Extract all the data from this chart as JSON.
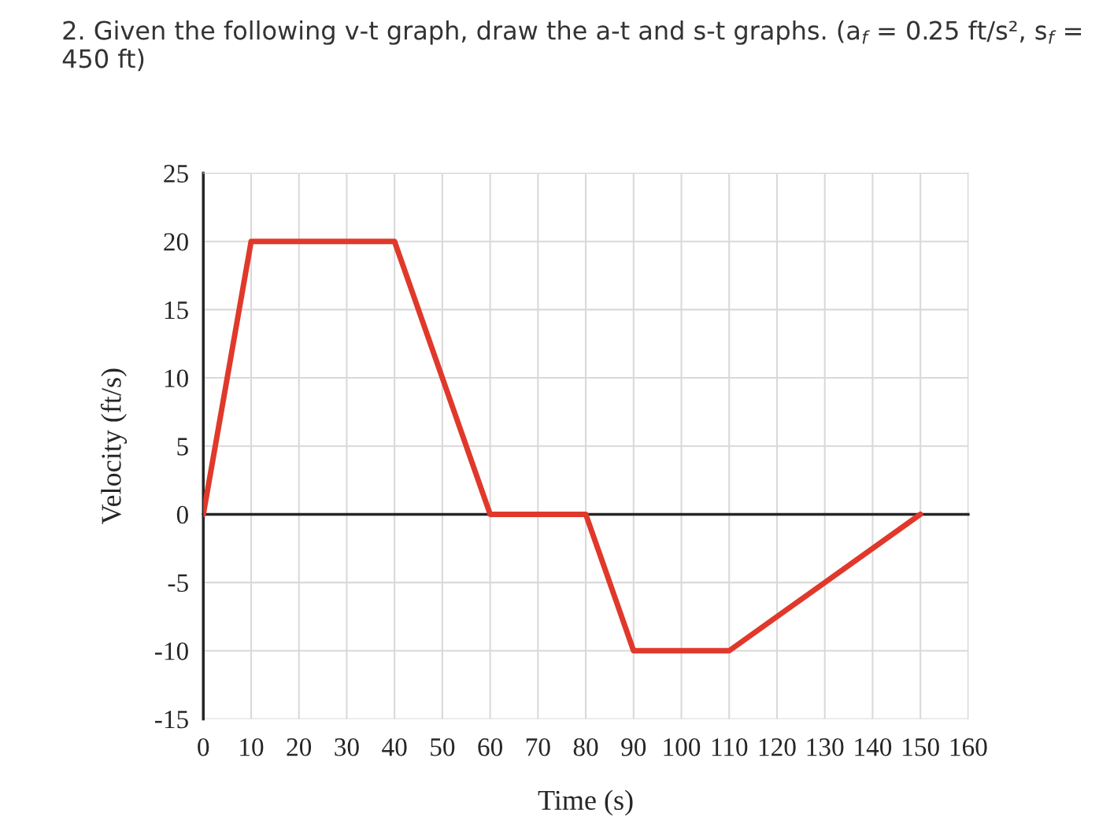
{
  "chart_data": {
    "type": "line",
    "title": "2. Given the following v-t graph, draw the a-t and s-t graphs. (a$_{f}$ = 0.25 ft/s², s$_{f}$ = 450 ft)",
    "xlabel": "Time (s)",
    "ylabel": "Velocity (ft/s)",
    "x": [
      0,
      10,
      40,
      60,
      80,
      90,
      110,
      150
    ],
    "series": [
      {
        "color": "#e0392b",
        "values": [
          0,
          20,
          20,
          0,
          0,
          -10,
          -10,
          0
        ]
      }
    ],
    "xlim": [
      0,
      160
    ],
    "xticks": [
      0,
      10,
      20,
      30,
      40,
      50,
      60,
      70,
      80,
      90,
      100,
      110,
      120,
      130,
      140,
      150,
      160
    ],
    "ylim": [
      -15,
      25
    ],
    "yticks": [
      -15,
      -10,
      -5,
      0,
      5,
      10,
      15,
      20,
      25
    ],
    "grid": true,
    "legend": false,
    "marker": "none",
    "line_style": "solid"
  }
}
